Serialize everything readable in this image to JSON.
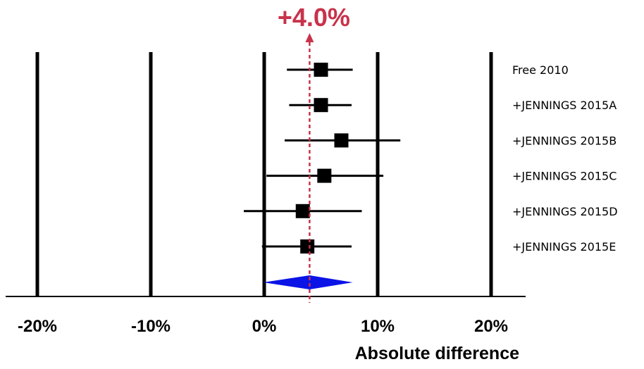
{
  "chart_data": {
    "type": "forest",
    "title": "",
    "xlabel": "Absolute difference",
    "ylabel": "",
    "xlim": [
      -23,
      23
    ],
    "x_ticks": [
      {
        "value": -20,
        "label": "-20%"
      },
      {
        "value": -10,
        "label": "-10%"
      },
      {
        "value": 0,
        "label": "0%"
      },
      {
        "value": 10,
        "label": "10%"
      },
      {
        "value": 20,
        "label": "20%"
      }
    ],
    "grid": "vertical",
    "studies": [
      {
        "label": "Free 2010",
        "estimate": 5.0,
        "ci_low": 2.0,
        "ci_high": 7.8
      },
      {
        "label": "+JENNINGS 2015A",
        "estimate": 5.0,
        "ci_low": 2.2,
        "ci_high": 7.7
      },
      {
        "label": "+JENNINGS 2015B",
        "estimate": 6.8,
        "ci_low": 1.8,
        "ci_high": 12.0
      },
      {
        "label": "+JENNINGS 2015C",
        "estimate": 5.3,
        "ci_low": 0.2,
        "ci_high": 10.5
      },
      {
        "label": "+JENNINGS 2015D",
        "estimate": 3.4,
        "ci_low": -1.8,
        "ci_high": 8.6
      },
      {
        "label": "+JENNINGS 2015E",
        "estimate": 3.8,
        "ci_low": -0.2,
        "ci_high": 7.7
      }
    ],
    "summary": {
      "estimate": 4.0,
      "ci_low": -0.1,
      "ci_high": 7.8,
      "label": "+4.0%"
    },
    "colors": {
      "summary_diamond": "#0a14e6",
      "summary_line": "#c8324b",
      "summary_label": "#c8324b",
      "marks": "#000000"
    }
  }
}
